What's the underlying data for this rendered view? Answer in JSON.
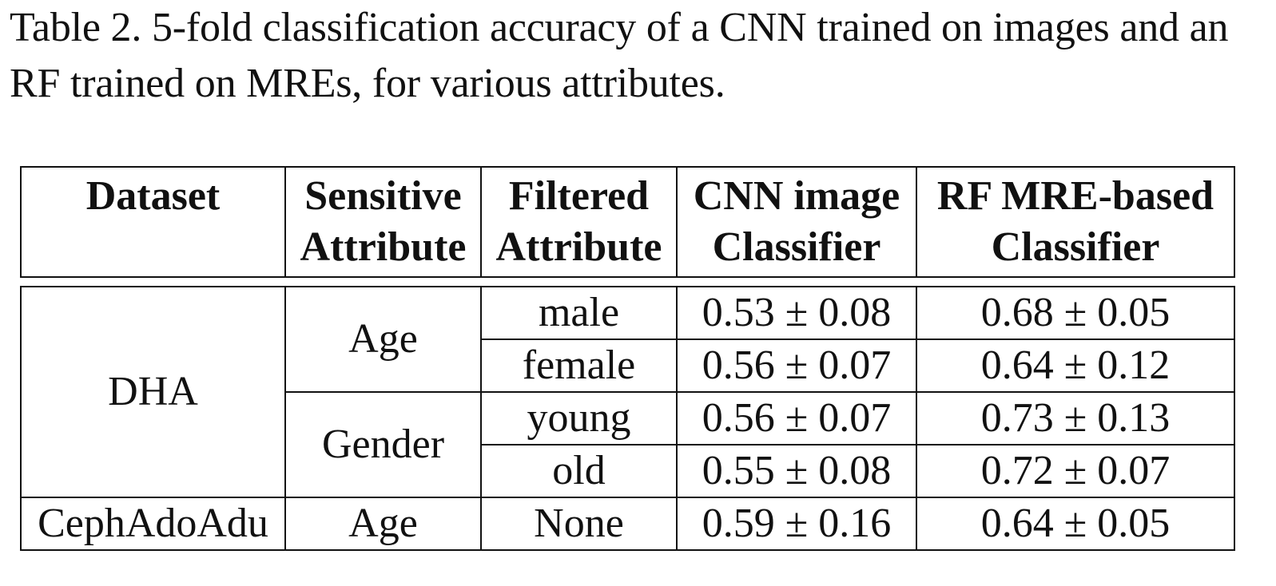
{
  "caption": "Table 2. 5-fold classification accuracy of a CNN trained on images and an RF trained on MREs, for various attributes.",
  "table": {
    "headers": {
      "dataset": "Dataset",
      "sensitive_line1": "Sensitive",
      "sensitive_line2": "Attribute",
      "filtered_line1": "Filtered",
      "filtered_line2": "Attribute",
      "cnn_line1": "CNN image",
      "cnn_line2": "Classifier",
      "rf_line1": "RF MRE-based",
      "rf_line2": "Classifier"
    },
    "groups": [
      {
        "dataset": "DHA",
        "sensitive": [
          {
            "attribute": "Age",
            "rows": [
              {
                "filtered": "male",
                "cnn": "0.53 ± 0.08",
                "rf": "0.68 ± 0.05"
              },
              {
                "filtered": "female",
                "cnn": "0.56 ± 0.07",
                "rf": "0.64 ± 0.12"
              }
            ]
          },
          {
            "attribute": "Gender",
            "rows": [
              {
                "filtered": "young",
                "cnn": "0.56 ± 0.07",
                "rf": "0.73 ± 0.13"
              },
              {
                "filtered": "old",
                "cnn": "0.55 ± 0.08",
                "rf": "0.72 ± 0.07"
              }
            ]
          }
        ]
      },
      {
        "dataset": "CephAdoAdu",
        "sensitive": [
          {
            "attribute": "Age",
            "rows": [
              {
                "filtered": "None",
                "cnn": "0.59 ± 0.16",
                "rf": "0.64 ± 0.05"
              }
            ]
          }
        ]
      }
    ]
  }
}
